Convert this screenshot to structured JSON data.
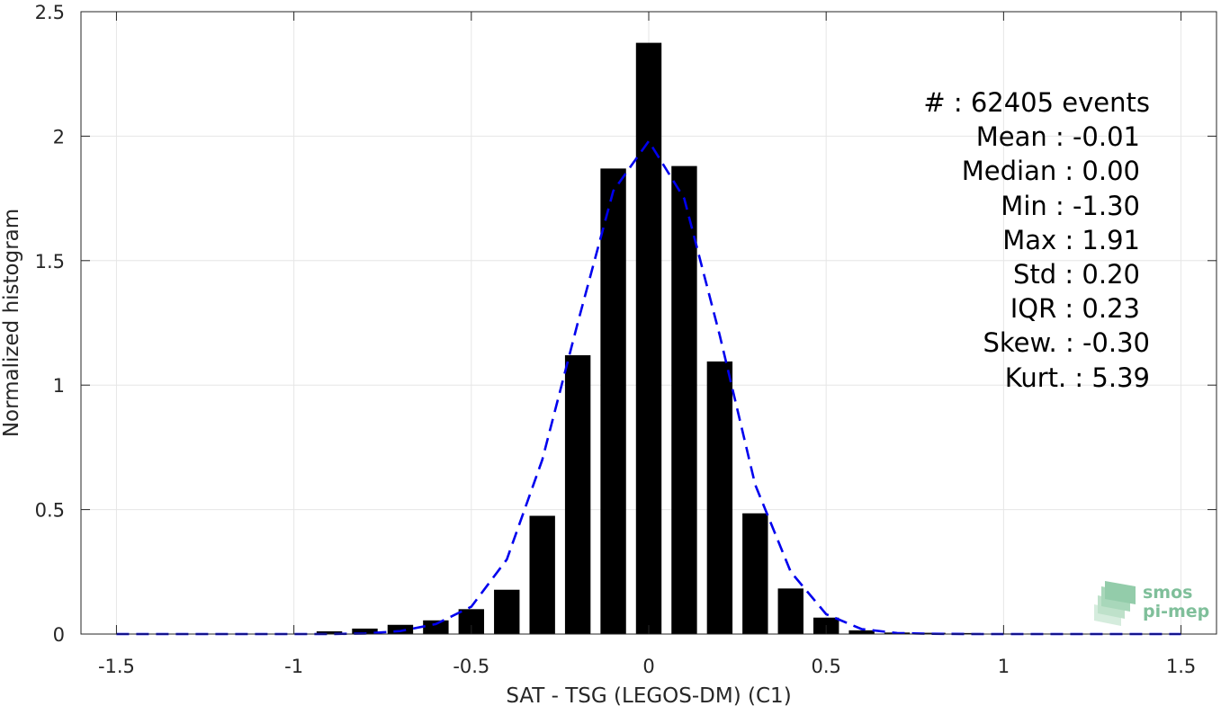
{
  "chart_data": {
    "type": "bar",
    "title": "",
    "xlabel": "SAT - TSG (LEGOS-DM) (C1)",
    "ylabel": "Normalized histogram",
    "xlim": [
      -1.6,
      1.6
    ],
    "ylim": [
      0,
      2.5
    ],
    "x_ticks": [
      "-1.5",
      "-1",
      "-0.5",
      "0",
      "0.5",
      "1",
      "1.5"
    ],
    "y_ticks": [
      "0",
      "0.5",
      "1",
      "1.5",
      "2",
      "2.5"
    ],
    "grid": true,
    "bar_color": "#000000",
    "fit_color": "#0000ee",
    "bin_width": 0.1,
    "series": [
      {
        "kind": "bars",
        "x": [
          -1.5,
          -1.4,
          -1.3,
          -1.2,
          -1.1,
          -1.0,
          -0.9,
          -0.8,
          -0.7,
          -0.6,
          -0.5,
          -0.4,
          -0.3,
          -0.2,
          -0.1,
          0.0,
          0.1,
          0.2,
          0.3,
          0.4,
          0.5,
          0.6,
          0.7,
          0.8,
          0.9,
          1.0,
          1.1,
          1.2,
          1.3,
          1.4,
          1.5
        ],
        "values": [
          0,
          0,
          0,
          0,
          0,
          0,
          0.011,
          0.022,
          0.037,
          0.055,
          0.1,
          0.178,
          0.475,
          1.12,
          1.87,
          2.375,
          1.88,
          1.095,
          0.485,
          0.183,
          0.066,
          0.015,
          0.006,
          0.005,
          0.004,
          0.002,
          0.002,
          0.001,
          0.001,
          0.001,
          0
        ]
      },
      {
        "kind": "fit-line",
        "x": [
          -1.5,
          -1.4,
          -1.3,
          -1.2,
          -1.1,
          -1.0,
          -0.9,
          -0.8,
          -0.7,
          -0.6,
          -0.5,
          -0.4,
          -0.3,
          -0.2,
          -0.1,
          0.0,
          0.1,
          0.2,
          0.3,
          0.4,
          0.5,
          0.6,
          0.7,
          0.8,
          0.9,
          1.0,
          1.1,
          1.2,
          1.3,
          1.4,
          1.5
        ],
        "values": [
          0,
          0,
          0,
          0,
          0,
          0,
          0,
          0.002,
          0.012,
          0.04,
          0.11,
          0.3,
          0.7,
          1.25,
          1.78,
          1.98,
          1.75,
          1.2,
          0.6,
          0.25,
          0.08,
          0.02,
          0.004,
          0.001,
          0,
          0,
          0,
          0,
          0,
          0,
          0
        ]
      }
    ],
    "stats": [
      "#  : 62405 events",
      "Mean : -0.01",
      "Median : 0.00",
      "Min : -1.30",
      "Max : 1.91",
      "Std : 0.20",
      "IQR : 0.23",
      "Skew. : -0.30",
      "Kurt. : 5.39"
    ]
  },
  "logo": {
    "line1": "smos",
    "line2": "pi-mep",
    "color": "#7fbf9a"
  }
}
